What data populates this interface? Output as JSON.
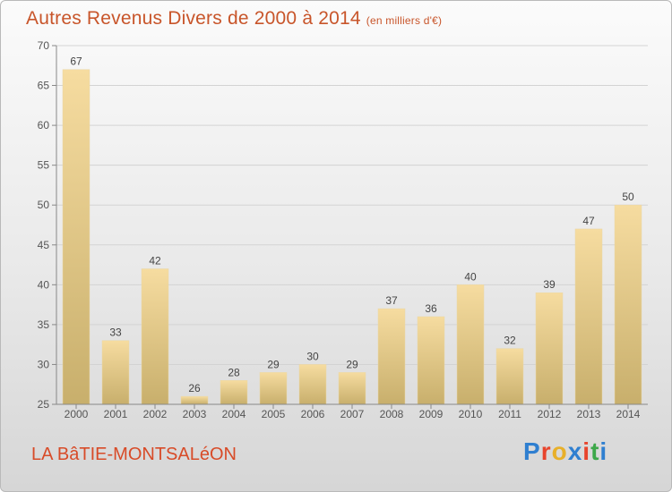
{
  "header": {
    "title": "Autres Revenus Divers de 2000 à 2014",
    "unit": "(en milliers d'€)"
  },
  "footer": {
    "commune": "LA BâTIE-MONTSALéON",
    "logo": "Proxiti"
  },
  "colors": {
    "title": "#c8552a",
    "commune": "#d84b28",
    "bar_light": "#f6dca0",
    "bar_dark": "#c8af6c",
    "logo": [
      "#2f7fd0",
      "#e8442c",
      "#e8b02a",
      "#2f7fd0",
      "#e8442c",
      "#3da84a",
      "#2f7fd0"
    ]
  },
  "chart_data": {
    "type": "bar",
    "categories": [
      "2000",
      "2001",
      "2002",
      "2003",
      "2004",
      "2005",
      "2006",
      "2007",
      "2008",
      "2009",
      "2010",
      "2011",
      "2012",
      "2013",
      "2014"
    ],
    "values": [
      67,
      33,
      42,
      26,
      28,
      29,
      30,
      29,
      37,
      36,
      40,
      32,
      39,
      47,
      50
    ],
    "ylim": [
      25,
      70
    ],
    "yticks": [
      25,
      30,
      35,
      40,
      45,
      50,
      55,
      60,
      65,
      70
    ],
    "grid": true,
    "legend": "none"
  }
}
